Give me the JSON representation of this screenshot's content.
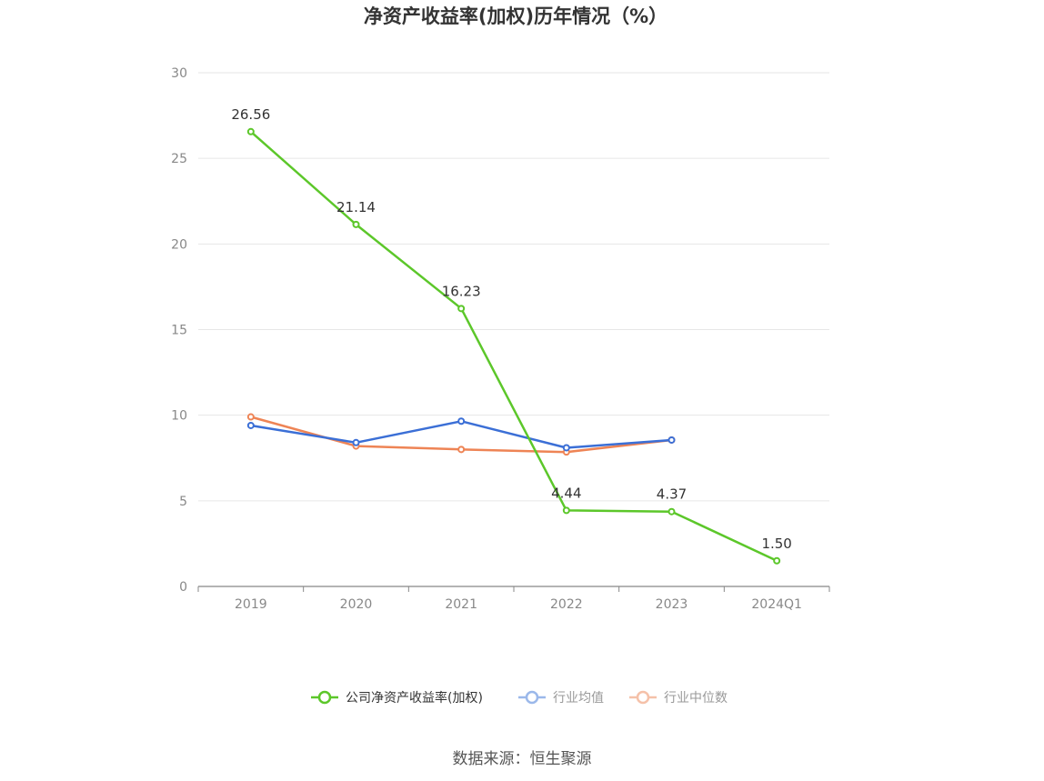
{
  "chart_data": {
    "type": "line",
    "title": "净资产收益率(加权)历年情况（%）",
    "categories": [
      "2019",
      "2020",
      "2021",
      "2022",
      "2023",
      "2024Q1"
    ],
    "ylim": [
      0,
      30
    ],
    "yticks": [
      "0",
      "5",
      "10",
      "15",
      "20",
      "25",
      "30"
    ],
    "grid": true,
    "legend_position": "bottom",
    "series": [
      {
        "name": "公司净资产收益率(加权)",
        "color": "#5cc72a",
        "values": [
          26.56,
          21.14,
          16.23,
          4.44,
          4.37,
          1.5
        ],
        "labels": [
          "26.56",
          "21.14",
          "16.23",
          "4.44",
          "4.37",
          "1.50"
        ],
        "legend_color": "#5cc72a",
        "legend_text_color": "#333333"
      },
      {
        "name": "行业均值",
        "color": "#3b6fd6",
        "values": [
          9.4,
          8.4,
          9.65,
          8.1,
          8.55,
          null
        ],
        "labels": [],
        "legend_color": "#9bb8ea",
        "legend_text_color": "#999999"
      },
      {
        "name": "行业中位数",
        "color": "#ee8455",
        "values": [
          9.9,
          8.2,
          8.0,
          7.85,
          8.55,
          null
        ],
        "labels": [],
        "legend_color": "#f5c1a9",
        "legend_text_color": "#999999"
      }
    ]
  },
  "source": "数据来源：恒生聚源"
}
